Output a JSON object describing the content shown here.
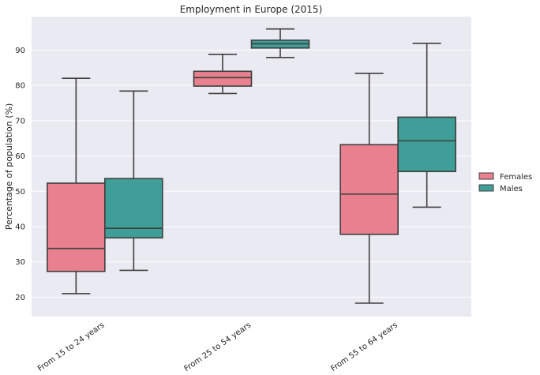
{
  "chart_data": {
    "type": "box",
    "title": "Employment in Europe (2015)",
    "xlabel": "",
    "ylabel": "Percentage of population (%)",
    "ylim": [
      14.5,
      99.5
    ],
    "yticks": [
      20,
      30,
      40,
      50,
      60,
      70,
      80,
      90
    ],
    "categories": [
      "From 15 to 24 years",
      "From 25 to 54 years",
      "From 55 to 64 years"
    ],
    "series": [
      {
        "name": "Females",
        "color": "#e8808f",
        "boxes": [
          {
            "whisker_low": 21.0,
            "q1": 27.3,
            "median": 33.8,
            "q3": 52.3,
            "whisker_high": 82.0
          },
          {
            "whisker_low": 77.7,
            "q1": 79.8,
            "median": 82.2,
            "q3": 84.0,
            "whisker_high": 88.8
          },
          {
            "whisker_low": 18.3,
            "q1": 37.8,
            "median": 49.2,
            "q3": 63.2,
            "whisker_high": 83.4
          }
        ]
      },
      {
        "name": "Males",
        "color": "#3f9e97",
        "boxes": [
          {
            "whisker_low": 27.6,
            "q1": 36.8,
            "median": 39.5,
            "q3": 53.6,
            "whisker_high": 78.4
          },
          {
            "whisker_low": 87.9,
            "q1": 90.6,
            "median": 91.8,
            "q3": 92.8,
            "whisker_high": 96.0
          },
          {
            "whisker_low": 45.5,
            "q1": 55.6,
            "median": 64.3,
            "q3": 71.0,
            "whisker_high": 91.9
          }
        ]
      }
    ],
    "grid": true,
    "legend_position": "right"
  }
}
